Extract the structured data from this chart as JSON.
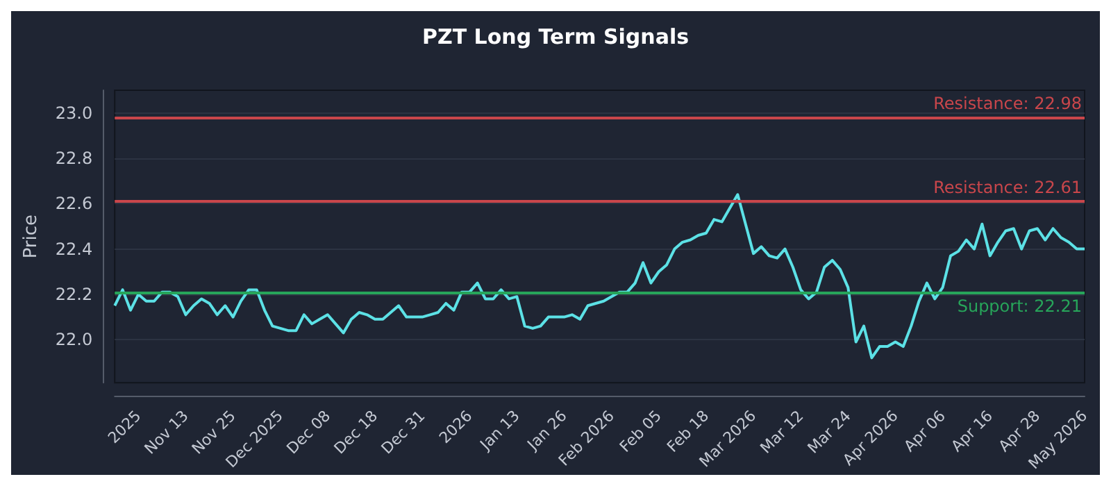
{
  "chart_data": {
    "type": "line",
    "title": "PZT Long Term Signals",
    "ylabel": "Price",
    "categories": [
      null,
      null,
      null,
      "2025",
      null,
      null,
      null,
      null,
      null,
      "Nov 13",
      null,
      null,
      null,
      null,
      null,
      "Nov 25",
      null,
      null,
      null,
      null,
      null,
      "Dec 2025",
      null,
      null,
      null,
      null,
      null,
      "Dec 08",
      null,
      null,
      null,
      null,
      null,
      "Dec 18",
      null,
      null,
      null,
      null,
      null,
      "Dec 31",
      null,
      null,
      null,
      null,
      null,
      "2026",
      null,
      null,
      null,
      null,
      null,
      "Jan 13",
      null,
      null,
      null,
      null,
      null,
      "Jan 26",
      null,
      null,
      null,
      null,
      null,
      "Feb 2026",
      null,
      null,
      null,
      null,
      null,
      "Feb 05",
      null,
      null,
      null,
      null,
      null,
      "Feb 18",
      null,
      null,
      null,
      null,
      null,
      "Mar 2026",
      null,
      null,
      null,
      null,
      null,
      "Mar 12",
      null,
      null,
      null,
      null,
      null,
      "Mar 24",
      null,
      null,
      null,
      null,
      null,
      "Apr 2026",
      null,
      null,
      null,
      null,
      null,
      "Apr 06",
      null,
      null,
      null,
      null,
      null,
      "Apr 16",
      null,
      null,
      null,
      null,
      null,
      "Apr 28",
      null,
      null,
      null,
      null,
      null,
      "May 2026"
    ],
    "series": [
      {
        "color": "#5ce1e6",
        "values": [
          22.15,
          22.22,
          22.13,
          22.2,
          22.17,
          22.17,
          22.21,
          22.21,
          22.19,
          22.11,
          22.15,
          22.18,
          22.16,
          22.11,
          22.15,
          22.1,
          22.17,
          22.22,
          22.22,
          22.13,
          22.06,
          22.05,
          22.04,
          22.04,
          22.11,
          22.07,
          22.09,
          22.11,
          22.07,
          22.03,
          22.09,
          22.12,
          22.11,
          22.09,
          22.09,
          22.12,
          22.15,
          22.1,
          22.1,
          22.1,
          22.11,
          22.12,
          22.16,
          22.13,
          22.21,
          22.21,
          22.25,
          22.18,
          22.18,
          22.22,
          22.18,
          22.19,
          22.06,
          22.05,
          22.06,
          22.1,
          22.1,
          22.1,
          22.11,
          22.09,
          22.15,
          22.16,
          22.17,
          22.19,
          22.21,
          22.21,
          22.25,
          22.34,
          22.25,
          22.3,
          22.33,
          22.4,
          22.43,
          22.44,
          22.46,
          22.47,
          22.53,
          22.52,
          22.58,
          22.64,
          22.51,
          22.38,
          22.41,
          22.37,
          22.36,
          22.4,
          22.32,
          22.22,
          22.18,
          22.21,
          22.32,
          22.35,
          22.31,
          22.23,
          21.99,
          22.06,
          21.92,
          21.97,
          21.97,
          21.99,
          21.97,
          22.06,
          22.17,
          22.25,
          22.18,
          22.23,
          22.37,
          22.39,
          22.44,
          22.4,
          22.51,
          22.37,
          22.43,
          22.48,
          22.49,
          22.4,
          22.48,
          22.49,
          22.44,
          22.49,
          22.45,
          22.43,
          22.4,
          22.4
        ]
      }
    ],
    "ylim": [
      21.81,
      23.1
    ],
    "yticks": [
      {
        "value": 22.0,
        "label": "22.0"
      },
      {
        "value": 22.2,
        "label": "22.2"
      },
      {
        "value": 22.4,
        "label": "22.4"
      },
      {
        "value": 22.6,
        "label": "22.6"
      },
      {
        "value": 22.8,
        "label": "22.8"
      },
      {
        "value": 23.0,
        "label": "23.0"
      }
    ],
    "grid": "y",
    "ref_lines": [
      {
        "axis": "y",
        "value": 22.98,
        "label": "Resistance: 22.98",
        "color": "#c9464b"
      },
      {
        "axis": "y",
        "value": 22.61,
        "label": "Resistance: 22.61",
        "color": "#c9464b"
      },
      {
        "axis": "y",
        "value": 22.21,
        "label": "Support: 22.21",
        "color": "#27a55a"
      }
    ]
  }
}
